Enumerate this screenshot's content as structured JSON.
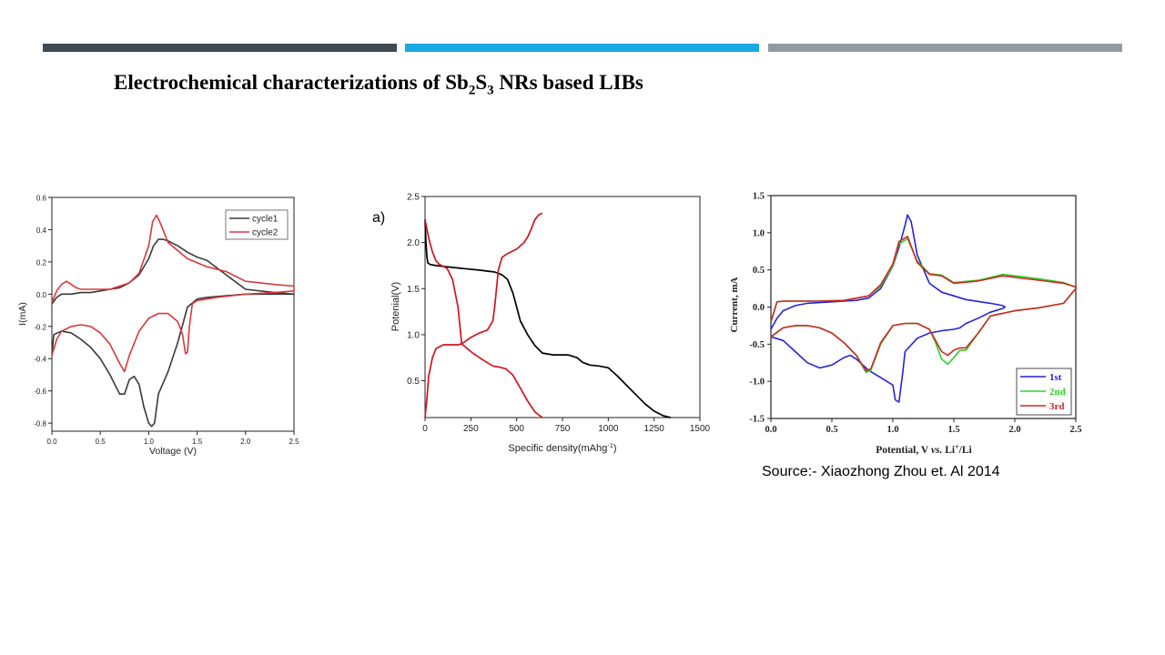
{
  "slide": {
    "title_main": "Electrochemical characterizations of Sb",
    "title_sub1": "2",
    "title_mid": "S",
    "title_sub2": "3",
    "title_end": " NRs based LIBs",
    "source": "Source:- Xiaozhong Zhou et. Al 2014",
    "bar_colors": [
      "#3f4a52",
      "#1aa9e0",
      "#939aa0"
    ]
  },
  "chart_data": [
    {
      "type": "line",
      "xlabel": "Voltage (V)",
      "ylabel": "I(mA)",
      "xlim": [
        0.0,
        2.5
      ],
      "ylim": [
        -0.85,
        0.6
      ],
      "xticks": [
        "0.0",
        "0.5",
        "1.0",
        "1.5",
        "2.0",
        "2.5"
      ],
      "yticks": [
        "-0.8",
        "-0.6",
        "-0.4",
        "-0.2",
        "0.0",
        "0.2",
        "0.4",
        "0.6"
      ],
      "legend_position": "top-right",
      "series": [
        {
          "name": "cycle1",
          "color": "#3a3a3a",
          "x": [
            0.0,
            0.02,
            0.1,
            0.2,
            0.3,
            0.4,
            0.5,
            0.6,
            0.7,
            0.75,
            0.8,
            0.85,
            0.9,
            0.95,
            1.0,
            1.03,
            1.06,
            1.1,
            1.2,
            1.3,
            1.4,
            1.5,
            1.6,
            1.8,
            2.0,
            2.3,
            2.5,
            2.5,
            2.3,
            2.0,
            1.8,
            1.6,
            1.5,
            1.4,
            1.3,
            1.2,
            1.15,
            1.1,
            1.05,
            1.0,
            0.9,
            0.8,
            0.7,
            0.6,
            0.5,
            0.4,
            0.3,
            0.2,
            0.1,
            0.05,
            0.0
          ],
          "y": [
            -0.38,
            -0.25,
            -0.23,
            -0.24,
            -0.28,
            -0.33,
            -0.4,
            -0.5,
            -0.62,
            -0.62,
            -0.53,
            -0.51,
            -0.56,
            -0.7,
            -0.8,
            -0.82,
            -0.8,
            -0.62,
            -0.48,
            -0.3,
            -0.08,
            -0.03,
            -0.02,
            -0.01,
            0.0,
            0.0,
            0.0,
            0.0,
            0.01,
            0.03,
            0.12,
            0.21,
            0.23,
            0.26,
            0.3,
            0.33,
            0.34,
            0.34,
            0.3,
            0.22,
            0.12,
            0.07,
            0.04,
            0.03,
            0.02,
            0.01,
            0.01,
            0.0,
            0.0,
            -0.02,
            -0.06
          ]
        },
        {
          "name": "cycle2",
          "color": "#d9393b",
          "x": [
            0.0,
            0.05,
            0.1,
            0.2,
            0.3,
            0.4,
            0.5,
            0.6,
            0.7,
            0.75,
            0.8,
            0.9,
            1.0,
            1.1,
            1.2,
            1.3,
            1.35,
            1.38,
            1.4,
            1.42,
            1.45,
            1.5,
            1.7,
            2.0,
            2.3,
            2.5,
            2.5,
            2.3,
            2.0,
            1.8,
            1.6,
            1.4,
            1.2,
            1.12,
            1.08,
            1.04,
            1.0,
            0.9,
            0.8,
            0.7,
            0.6,
            0.5,
            0.4,
            0.3,
            0.25,
            0.2,
            0.15,
            0.1,
            0.05,
            0.0
          ],
          "y": [
            -0.38,
            -0.28,
            -0.23,
            -0.2,
            -0.19,
            -0.2,
            -0.24,
            -0.31,
            -0.43,
            -0.48,
            -0.38,
            -0.23,
            -0.15,
            -0.12,
            -0.12,
            -0.17,
            -0.25,
            -0.37,
            -0.36,
            -0.2,
            -0.06,
            -0.04,
            -0.02,
            0.0,
            0.01,
            0.02,
            0.05,
            0.06,
            0.08,
            0.14,
            0.17,
            0.22,
            0.32,
            0.44,
            0.49,
            0.45,
            0.3,
            0.13,
            0.07,
            0.05,
            0.03,
            0.03,
            0.03,
            0.03,
            0.04,
            0.06,
            0.08,
            0.06,
            0.02,
            -0.05
          ]
        }
      ]
    },
    {
      "type": "line",
      "panel_label": "a)",
      "xlabel": "Specific density(mAhg",
      "xlabel_sup": "-1",
      "xlabel_end": ")",
      "ylabel": "Potenial(V)",
      "xlim": [
        0,
        1500
      ],
      "ylim": [
        0.1,
        2.5
      ],
      "xticks": [
        "0",
        "250",
        "500",
        "750",
        "1000",
        "1250",
        "1500"
      ],
      "yticks": [
        "0.5",
        "1.0",
        "1.5",
        "2.0",
        "2.5"
      ],
      "series": [
        {
          "color": "#000000",
          "x": [
            0,
            5,
            10,
            15,
            30,
            60,
            100,
            200,
            300,
            380,
            420,
            450,
            480,
            500,
            520,
            560,
            600,
            640,
            700,
            780,
            830,
            860,
            900,
            950,
            1000,
            1050,
            1100,
            1150,
            1200,
            1250,
            1300,
            1340
          ],
          "y": [
            2.25,
            2.0,
            1.85,
            1.78,
            1.76,
            1.75,
            1.74,
            1.72,
            1.7,
            1.68,
            1.65,
            1.6,
            1.45,
            1.3,
            1.15,
            1.0,
            0.88,
            0.8,
            0.78,
            0.78,
            0.75,
            0.7,
            0.67,
            0.66,
            0.64,
            0.55,
            0.45,
            0.35,
            0.25,
            0.17,
            0.12,
            0.1
          ]
        },
        {
          "color": "#d4131e",
          "x": [
            0,
            10,
            20,
            40,
            60,
            100,
            150,
            180,
            200,
            250,
            300,
            340,
            370,
            380,
            390,
            400,
            420,
            450,
            500,
            540,
            560,
            580,
            600,
            620,
            640
          ],
          "y": [
            0.1,
            0.3,
            0.55,
            0.75,
            0.85,
            0.89,
            0.89,
            0.89,
            0.9,
            0.97,
            1.02,
            1.05,
            1.15,
            1.3,
            1.5,
            1.7,
            1.84,
            1.88,
            1.93,
            2.0,
            2.06,
            2.15,
            2.25,
            2.3,
            2.32
          ]
        },
        {
          "color": "#d4131e",
          "x": [
            0,
            10,
            20,
            40,
            60,
            80,
            100,
            120,
            150,
            180,
            200,
            260,
            320,
            370,
            400,
            440,
            480,
            520,
            560,
            600,
            640
          ],
          "y": [
            2.25,
            2.15,
            2.05,
            1.9,
            1.8,
            1.76,
            1.74,
            1.72,
            1.6,
            1.3,
            0.9,
            0.8,
            0.72,
            0.66,
            0.65,
            0.63,
            0.56,
            0.42,
            0.28,
            0.16,
            0.1
          ]
        }
      ]
    },
    {
      "type": "line",
      "xlabel_a": "Potential, V ",
      "xlabel_vs": "vs.",
      "xlabel_b": " Li",
      "xlabel_sup": "+",
      "xlabel_c": "/Li",
      "ylabel": "Current, mA",
      "xlim": [
        0.0,
        2.5
      ],
      "ylim": [
        -1.5,
        1.5
      ],
      "xticks": [
        "0.0",
        "0.5",
        "1.0",
        "1.5",
        "2.0",
        "2.5"
      ],
      "yticks": [
        "-1.5",
        "-1.0",
        "-0.5",
        "0.0",
        "0.5",
        "1.0",
        "1.5"
      ],
      "legend_position": "bottom-right",
      "series": [
        {
          "name": "1st",
          "color": "#2424d9",
          "x": [
            0.0,
            0.1,
            0.2,
            0.3,
            0.4,
            0.5,
            0.6,
            0.65,
            0.7,
            0.8,
            0.9,
            0.95,
            1.0,
            1.02,
            1.05,
            1.08,
            1.1,
            1.2,
            1.3,
            1.4,
            1.5,
            1.55,
            1.6,
            1.7,
            1.8,
            1.9,
            1.92,
            1.9,
            1.8,
            1.6,
            1.4,
            1.3,
            1.2,
            1.15,
            1.12,
            1.1,
            1.05,
            1.0,
            0.9,
            0.8,
            0.7,
            0.6,
            0.5,
            0.4,
            0.3,
            0.2,
            0.1,
            0.05,
            0.0
          ],
          "y": [
            -0.4,
            -0.45,
            -0.6,
            -0.75,
            -0.82,
            -0.78,
            -0.68,
            -0.65,
            -0.7,
            -0.85,
            -0.95,
            -1.0,
            -1.05,
            -1.25,
            -1.28,
            -0.9,
            -0.6,
            -0.42,
            -0.35,
            -0.32,
            -0.3,
            -0.28,
            -0.22,
            -0.15,
            -0.07,
            -0.02,
            0.0,
            0.02,
            0.05,
            0.1,
            0.2,
            0.32,
            0.7,
            1.15,
            1.24,
            1.1,
            0.8,
            0.55,
            0.25,
            0.12,
            0.09,
            0.08,
            0.07,
            0.06,
            0.05,
            0.02,
            -0.05,
            -0.15,
            -0.3
          ]
        },
        {
          "name": "2nd",
          "color": "#28d428",
          "x": [
            0.0,
            0.1,
            0.2,
            0.3,
            0.4,
            0.5,
            0.6,
            0.7,
            0.78,
            0.82,
            0.9,
            1.0,
            1.1,
            1.2,
            1.3,
            1.35,
            1.4,
            1.45,
            1.5,
            1.55,
            1.6,
            1.7,
            1.8,
            2.0,
            2.2,
            2.4,
            2.5,
            2.5,
            2.4,
            2.2,
            2.1,
            1.9,
            1.7,
            1.5,
            1.4,
            1.3,
            1.2,
            1.12,
            1.05,
            1.0,
            0.9,
            0.8,
            0.6,
            0.4,
            0.2,
            0.1,
            0.05,
            0.0
          ],
          "y": [
            -0.4,
            -0.28,
            -0.25,
            -0.25,
            -0.28,
            -0.35,
            -0.48,
            -0.65,
            -0.88,
            -0.85,
            -0.5,
            -0.25,
            -0.22,
            -0.22,
            -0.3,
            -0.48,
            -0.7,
            -0.77,
            -0.68,
            -0.58,
            -0.58,
            -0.35,
            -0.12,
            -0.05,
            -0.01,
            0.05,
            0.25,
            0.27,
            0.33,
            0.38,
            0.4,
            0.44,
            0.36,
            0.33,
            0.43,
            0.45,
            0.62,
            0.92,
            0.85,
            0.55,
            0.28,
            0.15,
            0.09,
            0.08,
            0.08,
            0.08,
            0.07,
            -0.2
          ]
        },
        {
          "name": "3rd",
          "color": "#d42424",
          "x": [
            0.0,
            0.1,
            0.2,
            0.3,
            0.4,
            0.5,
            0.6,
            0.7,
            0.78,
            0.82,
            0.9,
            1.0,
            1.1,
            1.2,
            1.3,
            1.35,
            1.4,
            1.45,
            1.5,
            1.55,
            1.6,
            1.7,
            1.8,
            2.0,
            2.2,
            2.4,
            2.5,
            2.5,
            2.4,
            2.2,
            2.1,
            1.9,
            1.7,
            1.5,
            1.4,
            1.3,
            1.2,
            1.12,
            1.05,
            1.0,
            0.9,
            0.8,
            0.6,
            0.4,
            0.2,
            0.1,
            0.05,
            0.0
          ],
          "y": [
            -0.4,
            -0.28,
            -0.25,
            -0.25,
            -0.28,
            -0.35,
            -0.48,
            -0.65,
            -0.86,
            -0.83,
            -0.48,
            -0.25,
            -0.22,
            -0.22,
            -0.3,
            -0.45,
            -0.6,
            -0.65,
            -0.58,
            -0.55,
            -0.55,
            -0.35,
            -0.12,
            -0.05,
            -0.01,
            0.05,
            0.25,
            0.27,
            0.32,
            0.36,
            0.38,
            0.42,
            0.35,
            0.32,
            0.42,
            0.44,
            0.6,
            0.95,
            0.88,
            0.58,
            0.3,
            0.15,
            0.09,
            0.08,
            0.08,
            0.08,
            0.07,
            -0.2
          ]
        }
      ]
    }
  ]
}
